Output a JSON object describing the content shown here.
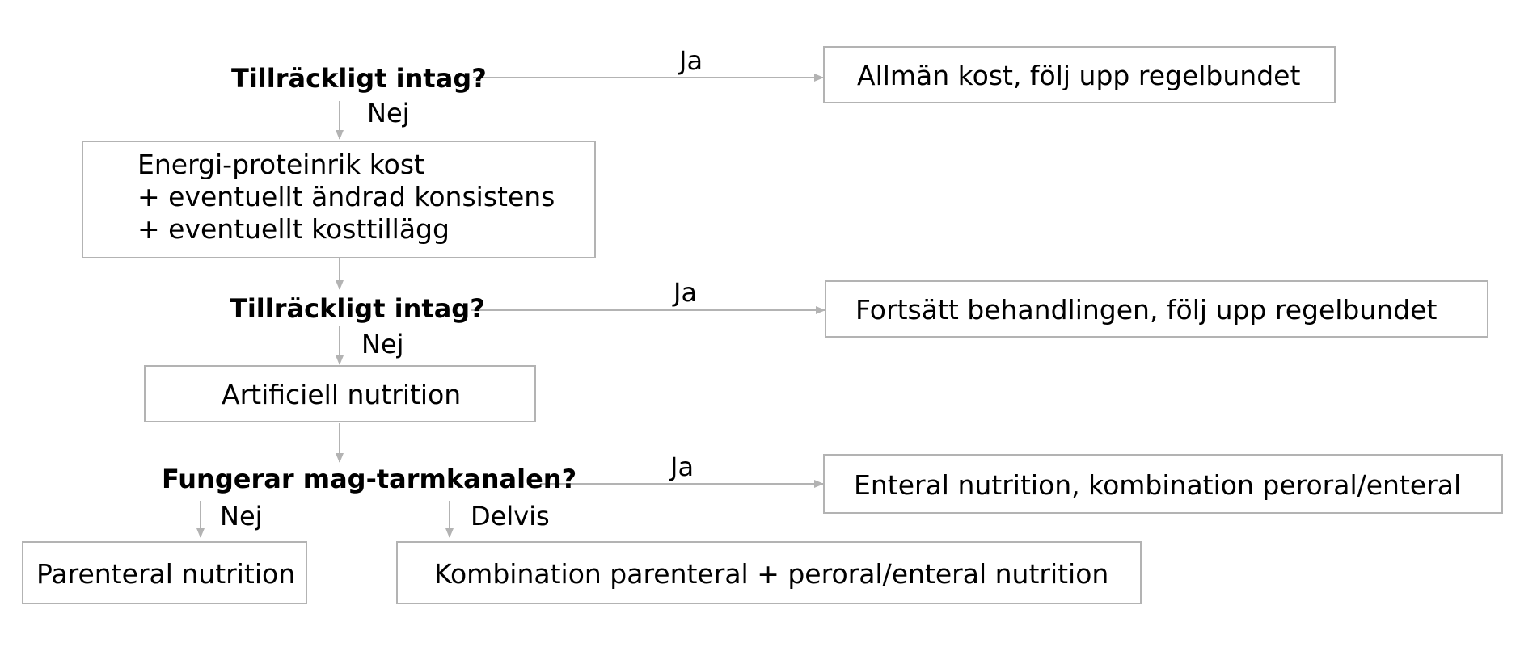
{
  "decisions": {
    "q1": "Tillräckligt intag?",
    "q2": "Tillräckligt intag?",
    "q3": "Fungerar mag-tarmkanalen?"
  },
  "edge_labels": {
    "ja1": "Ja",
    "nej1": "Nej",
    "ja2": "Ja",
    "nej2": "Nej",
    "ja3": "Ja",
    "nej3": "Nej",
    "delvis": "Delvis"
  },
  "boxes": {
    "allman_kost": "Allmän kost, följ upp regelbundet",
    "energi": [
      "Energi-proteinrik kost",
      "+ eventuellt ändrad konsistens",
      "+ eventuellt kosttillägg"
    ],
    "fortsatt": "Fortsätt behandlingen, följ upp regelbundet",
    "artificiell": "Artificiell nutrition",
    "enteral": "Enteral nutrition, kombination peroral/enteral",
    "parenteral": "Parenteral nutrition",
    "kombination": "Kombination parenteral + peroral/enteral nutrition"
  }
}
